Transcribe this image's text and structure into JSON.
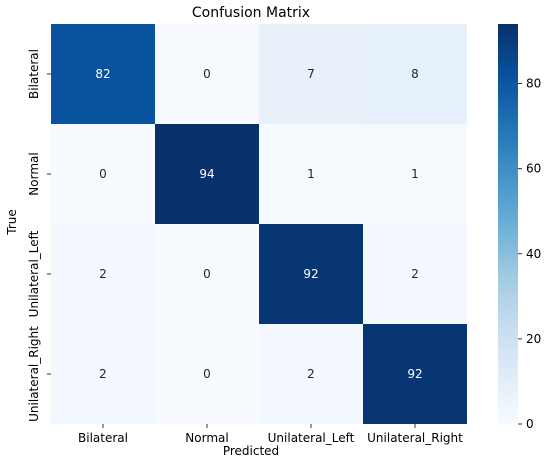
{
  "chart_data": {
    "type": "heatmap",
    "title": "Confusion Matrix",
    "xlabel": "Predicted",
    "ylabel": "True",
    "x_categories": [
      "Bilateral",
      "Normal",
      "Unilateral_Left",
      "Unilateral_Right"
    ],
    "y_categories": [
      "Bilateral",
      "Normal",
      "Unilateral_Left",
      "Unilateral_Right"
    ],
    "values": [
      [
        82,
        0,
        7,
        8
      ],
      [
        0,
        94,
        1,
        1
      ],
      [
        2,
        0,
        92,
        2
      ],
      [
        2,
        0,
        2,
        92
      ]
    ],
    "colormap": "Blues",
    "vmin": 0,
    "vmax": 94,
    "colorbar": {
      "ticks": [
        0,
        20,
        40,
        60,
        80
      ]
    },
    "annotation_colors": {
      "light": "#ffffff",
      "dark": "#262626"
    }
  }
}
